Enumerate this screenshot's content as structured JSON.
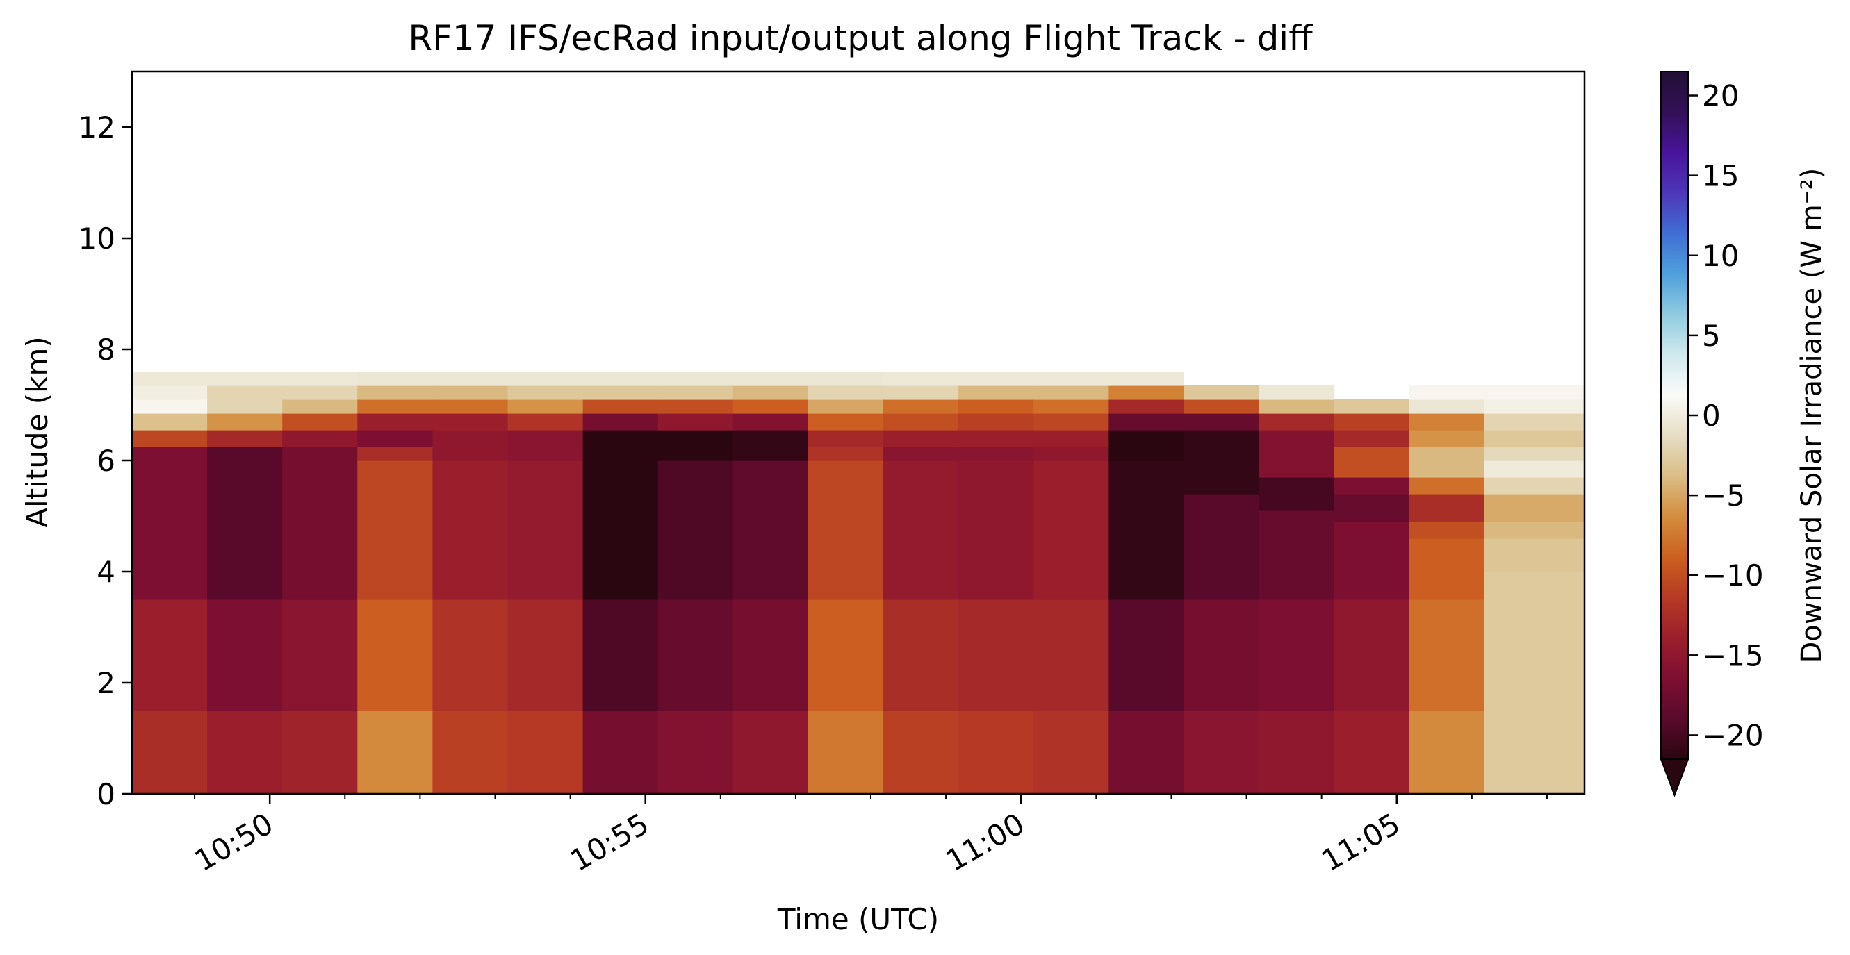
{
  "chart_data": {
    "type": "heatmap",
    "title": "RF17 IFS/ecRad input/output along Flight Track - diff",
    "xlabel": "Time (UTC)",
    "ylabel": "Altitude (km)",
    "xlim": [
      "10:48:10",
      "11:07:30"
    ],
    "ylim": [
      0,
      13
    ],
    "x_ticks": [
      "10:50",
      "10:55",
      "11:00",
      "11:05"
    ],
    "y_ticks": [
      0,
      2,
      4,
      6,
      8,
      10,
      12
    ],
    "colorbar": {
      "label": "Downward Solar Irradiance (W m⁻²)",
      "range": [
        -21.5,
        21.5
      ],
      "ticks": [
        -20,
        -15,
        -10,
        -5,
        0,
        5,
        10,
        15,
        20
      ],
      "extend": "min",
      "colors": [
        "#2a0610",
        "#5a0a2b",
        "#7e0f32",
        "#9b1f2c",
        "#b63a24",
        "#cc6020",
        "#d48d3e",
        "#dbbd86",
        "#e6ddc4",
        "#fbfbf8",
        "#cfe9ee",
        "#8fcbe0",
        "#4f9fdc",
        "#3f6fd4",
        "#4e36b8",
        "#48149a",
        "#331057",
        "#221036"
      ]
    },
    "times": [
      "10:48:10",
      "10:49:10",
      "10:50:10",
      "10:51:10",
      "10:52:10",
      "10:53:10",
      "10:54:10",
      "10:55:10",
      "10:56:10",
      "10:57:10",
      "10:58:10",
      "10:59:10",
      "11:00:10",
      "11:01:10",
      "11:02:10",
      "11:03:10",
      "11:04:10",
      "11:05:10",
      "11:06:10",
      "11:07:10"
    ],
    "columns": [
      {
        "x0": "10:48:10",
        "x1": "10:49:10",
        "layers": [
          [
            0,
            1.5,
            -12.5
          ],
          [
            1.5,
            3.5,
            -14
          ],
          [
            3.5,
            6.0,
            -16.5
          ],
          [
            6.0,
            6.25,
            -16.5
          ],
          [
            6.25,
            6.55,
            -10.5
          ],
          [
            6.55,
            6.85,
            -3.5
          ],
          [
            6.85,
            7.1,
            0.8
          ],
          [
            7.1,
            7.35,
            0.2
          ],
          [
            7.35,
            7.6,
            -0.3
          ]
        ]
      },
      {
        "x0": "10:49:10",
        "x1": "10:50:10",
        "layers": [
          [
            0,
            1.5,
            -14
          ],
          [
            1.5,
            3.5,
            -16.5
          ],
          [
            3.5,
            6.0,
            -19
          ],
          [
            6.0,
            6.25,
            -19
          ],
          [
            6.25,
            6.55,
            -13
          ],
          [
            6.55,
            6.85,
            -6
          ],
          [
            6.85,
            7.1,
            -2
          ],
          [
            7.1,
            7.35,
            -2
          ],
          [
            7.35,
            7.6,
            -0.3
          ]
        ]
      },
      {
        "x0": "10:50:10",
        "x1": "10:51:10",
        "layers": [
          [
            0,
            1.5,
            -13.5
          ],
          [
            1.5,
            3.5,
            -15.5
          ],
          [
            3.5,
            6.0,
            -17
          ],
          [
            6.0,
            6.25,
            -17
          ],
          [
            6.25,
            6.55,
            -15
          ],
          [
            6.55,
            6.85,
            -10
          ],
          [
            6.85,
            7.1,
            -4
          ],
          [
            7.1,
            7.35,
            -2
          ],
          [
            7.35,
            7.6,
            -0.3
          ]
        ]
      },
      {
        "x0": "10:51:10",
        "x1": "10:52:10",
        "layers": [
          [
            0,
            1.5,
            -6.5
          ],
          [
            1.5,
            3.5,
            -9
          ],
          [
            3.5,
            6.0,
            -10.5
          ],
          [
            6.0,
            6.25,
            -12.5
          ],
          [
            6.25,
            6.55,
            -16.5
          ],
          [
            6.55,
            6.85,
            -14
          ],
          [
            6.85,
            7.1,
            -8
          ],
          [
            7.1,
            7.35,
            -4
          ],
          [
            7.35,
            7.6,
            -0.5
          ]
        ]
      },
      {
        "x0": "10:52:10",
        "x1": "10:53:10",
        "layers": [
          [
            0,
            1.5,
            -11
          ],
          [
            1.5,
            3.5,
            -12
          ],
          [
            3.5,
            6.0,
            -14
          ],
          [
            6.0,
            6.25,
            -15
          ],
          [
            6.25,
            6.55,
            -15
          ],
          [
            6.55,
            6.85,
            -14
          ],
          [
            6.85,
            7.1,
            -8
          ],
          [
            7.1,
            7.35,
            -4
          ],
          [
            7.35,
            7.6,
            -0.5
          ]
        ]
      },
      {
        "x0": "10:53:10",
        "x1": "10:54:10",
        "layers": [
          [
            0,
            1.5,
            -11.5
          ],
          [
            1.5,
            3.5,
            -13
          ],
          [
            3.5,
            6.0,
            -14.5
          ],
          [
            6.0,
            6.25,
            -15.5
          ],
          [
            6.25,
            6.55,
            -15.5
          ],
          [
            6.55,
            6.85,
            -12
          ],
          [
            6.85,
            7.1,
            -6
          ],
          [
            7.1,
            7.35,
            -3
          ],
          [
            7.35,
            7.6,
            -0.5
          ]
        ]
      },
      {
        "x0": "10:54:10",
        "x1": "10:55:10",
        "layers": [
          [
            0,
            1.5,
            -17
          ],
          [
            1.5,
            3.5,
            -19.5
          ],
          [
            3.5,
            6.0,
            -21.5
          ],
          [
            6.0,
            6.55,
            -21.5
          ],
          [
            6.55,
            6.85,
            -17
          ],
          [
            6.85,
            7.1,
            -10
          ],
          [
            7.1,
            7.35,
            -3
          ],
          [
            7.35,
            7.6,
            -0.5
          ]
        ]
      },
      {
        "x0": "10:55:10",
        "x1": "10:56:10",
        "layers": [
          [
            0,
            1.5,
            -16
          ],
          [
            1.5,
            3.5,
            -18
          ],
          [
            3.5,
            6.0,
            -19.5
          ],
          [
            6.0,
            6.55,
            -21.5
          ],
          [
            6.55,
            6.85,
            -15
          ],
          [
            6.85,
            7.1,
            -10
          ],
          [
            7.1,
            7.35,
            -3
          ],
          [
            7.35,
            7.6,
            -0.5
          ]
        ]
      },
      {
        "x0": "10:56:10",
        "x1": "10:57:10",
        "layers": [
          [
            0,
            1.5,
            -15
          ],
          [
            1.5,
            3.5,
            -17
          ],
          [
            3.5,
            6.0,
            -18.5
          ],
          [
            6.0,
            6.55,
            -21
          ],
          [
            6.55,
            6.85,
            -16
          ],
          [
            6.85,
            7.1,
            -9
          ],
          [
            7.1,
            7.35,
            -4
          ],
          [
            7.35,
            7.6,
            -0.5
          ]
        ]
      },
      {
        "x0": "10:57:10",
        "x1": "10:58:10",
        "layers": [
          [
            0,
            1.5,
            -7.5
          ],
          [
            1.5,
            3.5,
            -9
          ],
          [
            3.5,
            6.0,
            -10.5
          ],
          [
            6.0,
            6.25,
            -12
          ],
          [
            6.25,
            6.55,
            -13
          ],
          [
            6.55,
            6.85,
            -9
          ],
          [
            6.85,
            7.1,
            -5
          ],
          [
            7.1,
            7.35,
            -2
          ],
          [
            7.35,
            7.6,
            -0.5
          ]
        ]
      },
      {
        "x0": "10:58:10",
        "x1": "10:59:10",
        "layers": [
          [
            0,
            1.5,
            -11
          ],
          [
            1.5,
            3.5,
            -12.5
          ],
          [
            3.5,
            6.0,
            -14.5
          ],
          [
            6.0,
            6.25,
            -15.5
          ],
          [
            6.25,
            6.55,
            -14
          ],
          [
            6.55,
            6.85,
            -10
          ],
          [
            6.85,
            7.1,
            -8
          ],
          [
            7.1,
            7.35,
            -2
          ],
          [
            7.35,
            7.6,
            -0.3
          ]
        ]
      },
      {
        "x0": "10:59:10",
        "x1": "11:00:10",
        "layers": [
          [
            0,
            1.5,
            -11.5
          ],
          [
            1.5,
            3.5,
            -13
          ],
          [
            3.5,
            6.0,
            -15
          ],
          [
            6.0,
            6.25,
            -15.5
          ],
          [
            6.25,
            6.55,
            -14
          ],
          [
            6.55,
            6.85,
            -11
          ],
          [
            6.85,
            7.1,
            -9
          ],
          [
            7.1,
            7.35,
            -4
          ],
          [
            7.35,
            7.6,
            -0.3
          ]
        ]
      },
      {
        "x0": "11:00:10",
        "x1": "11:01:10",
        "layers": [
          [
            0,
            1.5,
            -12
          ],
          [
            1.5,
            3.5,
            -13
          ],
          [
            3.5,
            6.0,
            -14
          ],
          [
            6.0,
            6.25,
            -15
          ],
          [
            6.25,
            6.55,
            -14
          ],
          [
            6.55,
            6.85,
            -10.5
          ],
          [
            6.85,
            7.1,
            -8
          ],
          [
            7.1,
            7.35,
            -4
          ],
          [
            7.35,
            7.6,
            -0.3
          ]
        ]
      },
      {
        "x0": "11:01:10",
        "x1": "11:02:10",
        "layers": [
          [
            0,
            1.5,
            -17
          ],
          [
            1.5,
            3.5,
            -19
          ],
          [
            3.5,
            6.0,
            -21
          ],
          [
            6.0,
            6.55,
            -21.5
          ],
          [
            6.55,
            6.85,
            -18
          ],
          [
            6.85,
            7.1,
            -13
          ],
          [
            7.1,
            7.35,
            -7
          ],
          [
            7.35,
            7.6,
            -0.3
          ]
        ]
      },
      {
        "x0": "11:02:10",
        "x1": "11:03:10",
        "layers": [
          [
            0,
            1.5,
            -15.5
          ],
          [
            1.5,
            3.5,
            -17
          ],
          [
            3.5,
            5.4,
            -19
          ],
          [
            5.4,
            6.55,
            -21
          ],
          [
            6.55,
            6.85,
            -18
          ],
          [
            6.85,
            7.1,
            -10
          ],
          [
            7.1,
            7.35,
            -3
          ]
        ]
      },
      {
        "x0": "11:03:10",
        "x1": "11:04:10",
        "layers": [
          [
            0,
            1.5,
            -15
          ],
          [
            1.5,
            3.5,
            -16.5
          ],
          [
            3.5,
            5.1,
            -18
          ],
          [
            5.1,
            5.7,
            -20
          ],
          [
            5.7,
            6.55,
            -16
          ],
          [
            6.55,
            6.85,
            -13
          ],
          [
            6.85,
            7.1,
            -4
          ],
          [
            7.1,
            7.35,
            -0.4
          ]
        ]
      },
      {
        "x0": "11:04:10",
        "x1": "11:05:10",
        "layers": [
          [
            0,
            1.5,
            -14
          ],
          [
            1.5,
            3.5,
            -15
          ],
          [
            3.5,
            4.9,
            -16.5
          ],
          [
            4.9,
            5.4,
            -18
          ],
          [
            5.4,
            5.7,
            -16.5
          ],
          [
            5.7,
            6.25,
            -10
          ],
          [
            6.25,
            6.55,
            -13
          ],
          [
            6.55,
            6.85,
            -11
          ],
          [
            6.85,
            7.1,
            -3
          ]
        ]
      },
      {
        "x0": "11:05:10",
        "x1": "11:06:10",
        "layers": [
          [
            0,
            1.5,
            -6.5
          ],
          [
            1.5,
            3.5,
            -8
          ],
          [
            3.5,
            4.6,
            -9
          ],
          [
            4.6,
            4.9,
            -10
          ],
          [
            4.9,
            5.4,
            -12.5
          ],
          [
            5.4,
            5.7,
            -8
          ],
          [
            5.7,
            6.25,
            -4
          ],
          [
            6.25,
            6.55,
            -6
          ],
          [
            6.55,
            6.85,
            -7
          ],
          [
            6.85,
            7.1,
            -0.5
          ],
          [
            7.1,
            7.35,
            0.8
          ]
        ]
      },
      {
        "x0": "11:06:10",
        "x1": "11:07:30",
        "layers": [
          [
            0,
            4.0,
            -2.8
          ],
          [
            4.0,
            4.6,
            -3.2
          ],
          [
            4.6,
            4.9,
            -4
          ],
          [
            4.9,
            5.4,
            -4.8
          ],
          [
            5.4,
            5.7,
            -2
          ],
          [
            5.7,
            6.0,
            -0.2
          ],
          [
            6.0,
            6.25,
            -1.6
          ],
          [
            6.25,
            6.55,
            -3
          ],
          [
            6.55,
            6.85,
            -2
          ],
          [
            6.85,
            7.1,
            0.3
          ],
          [
            7.1,
            7.35,
            0.8
          ]
        ]
      }
    ]
  }
}
